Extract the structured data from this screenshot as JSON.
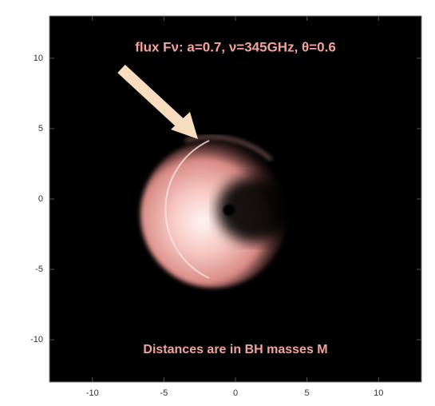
{
  "chart_data": {
    "type": "image",
    "title": "flux Fν: a=0.7,   ν=345GHz,   θ=0.6",
    "annotation": "Distances are in BH masses M",
    "xlim": [
      -13,
      13
    ],
    "ylim": [
      -13,
      13
    ],
    "xticks": [
      -10,
      -5,
      0,
      5,
      10
    ],
    "yticks": [
      -10,
      -5,
      0,
      5,
      10
    ],
    "background": "#000000"
  }
}
